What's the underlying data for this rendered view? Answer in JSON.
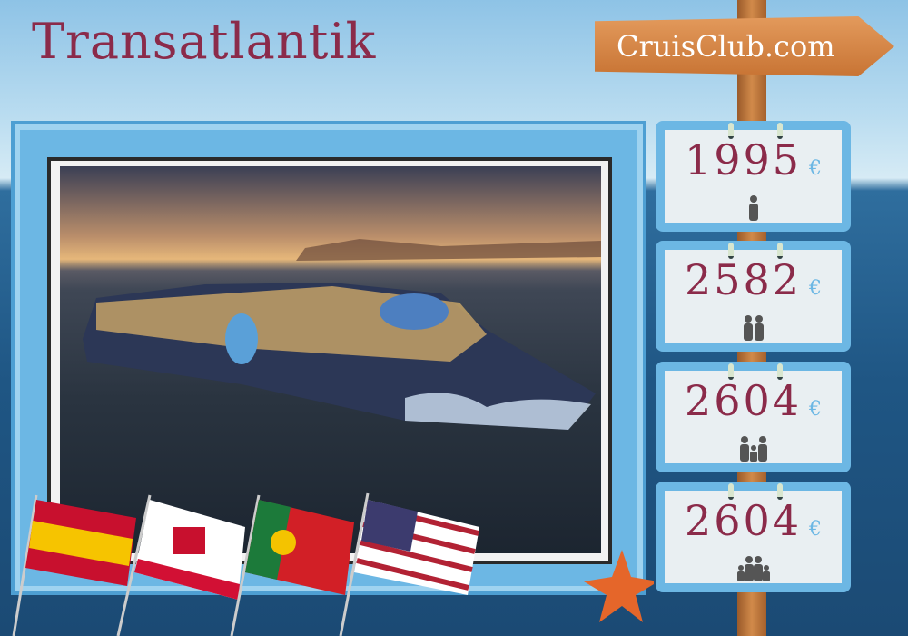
{
  "title": "Transatlantik",
  "brand": "CruisClub.com",
  "prices": [
    {
      "amount": "1995",
      "currency": "€",
      "travelers": "one-adult-icon"
    },
    {
      "amount": "2582",
      "currency": "€",
      "travelers": "two-adults-icon"
    },
    {
      "amount": "2604",
      "currency": "€",
      "travelers": "two-adults-one-child-icon"
    },
    {
      "amount": "2604",
      "currency": "€",
      "travelers": "two-adults-two-children-icon"
    }
  ],
  "flags": [
    "spain-flag",
    "gibraltar-flag",
    "portugal-flag",
    "usa-flag"
  ],
  "colors": {
    "title": "#8b2b4a",
    "frame": "#6cb7e4",
    "sign": "#d8854a"
  }
}
